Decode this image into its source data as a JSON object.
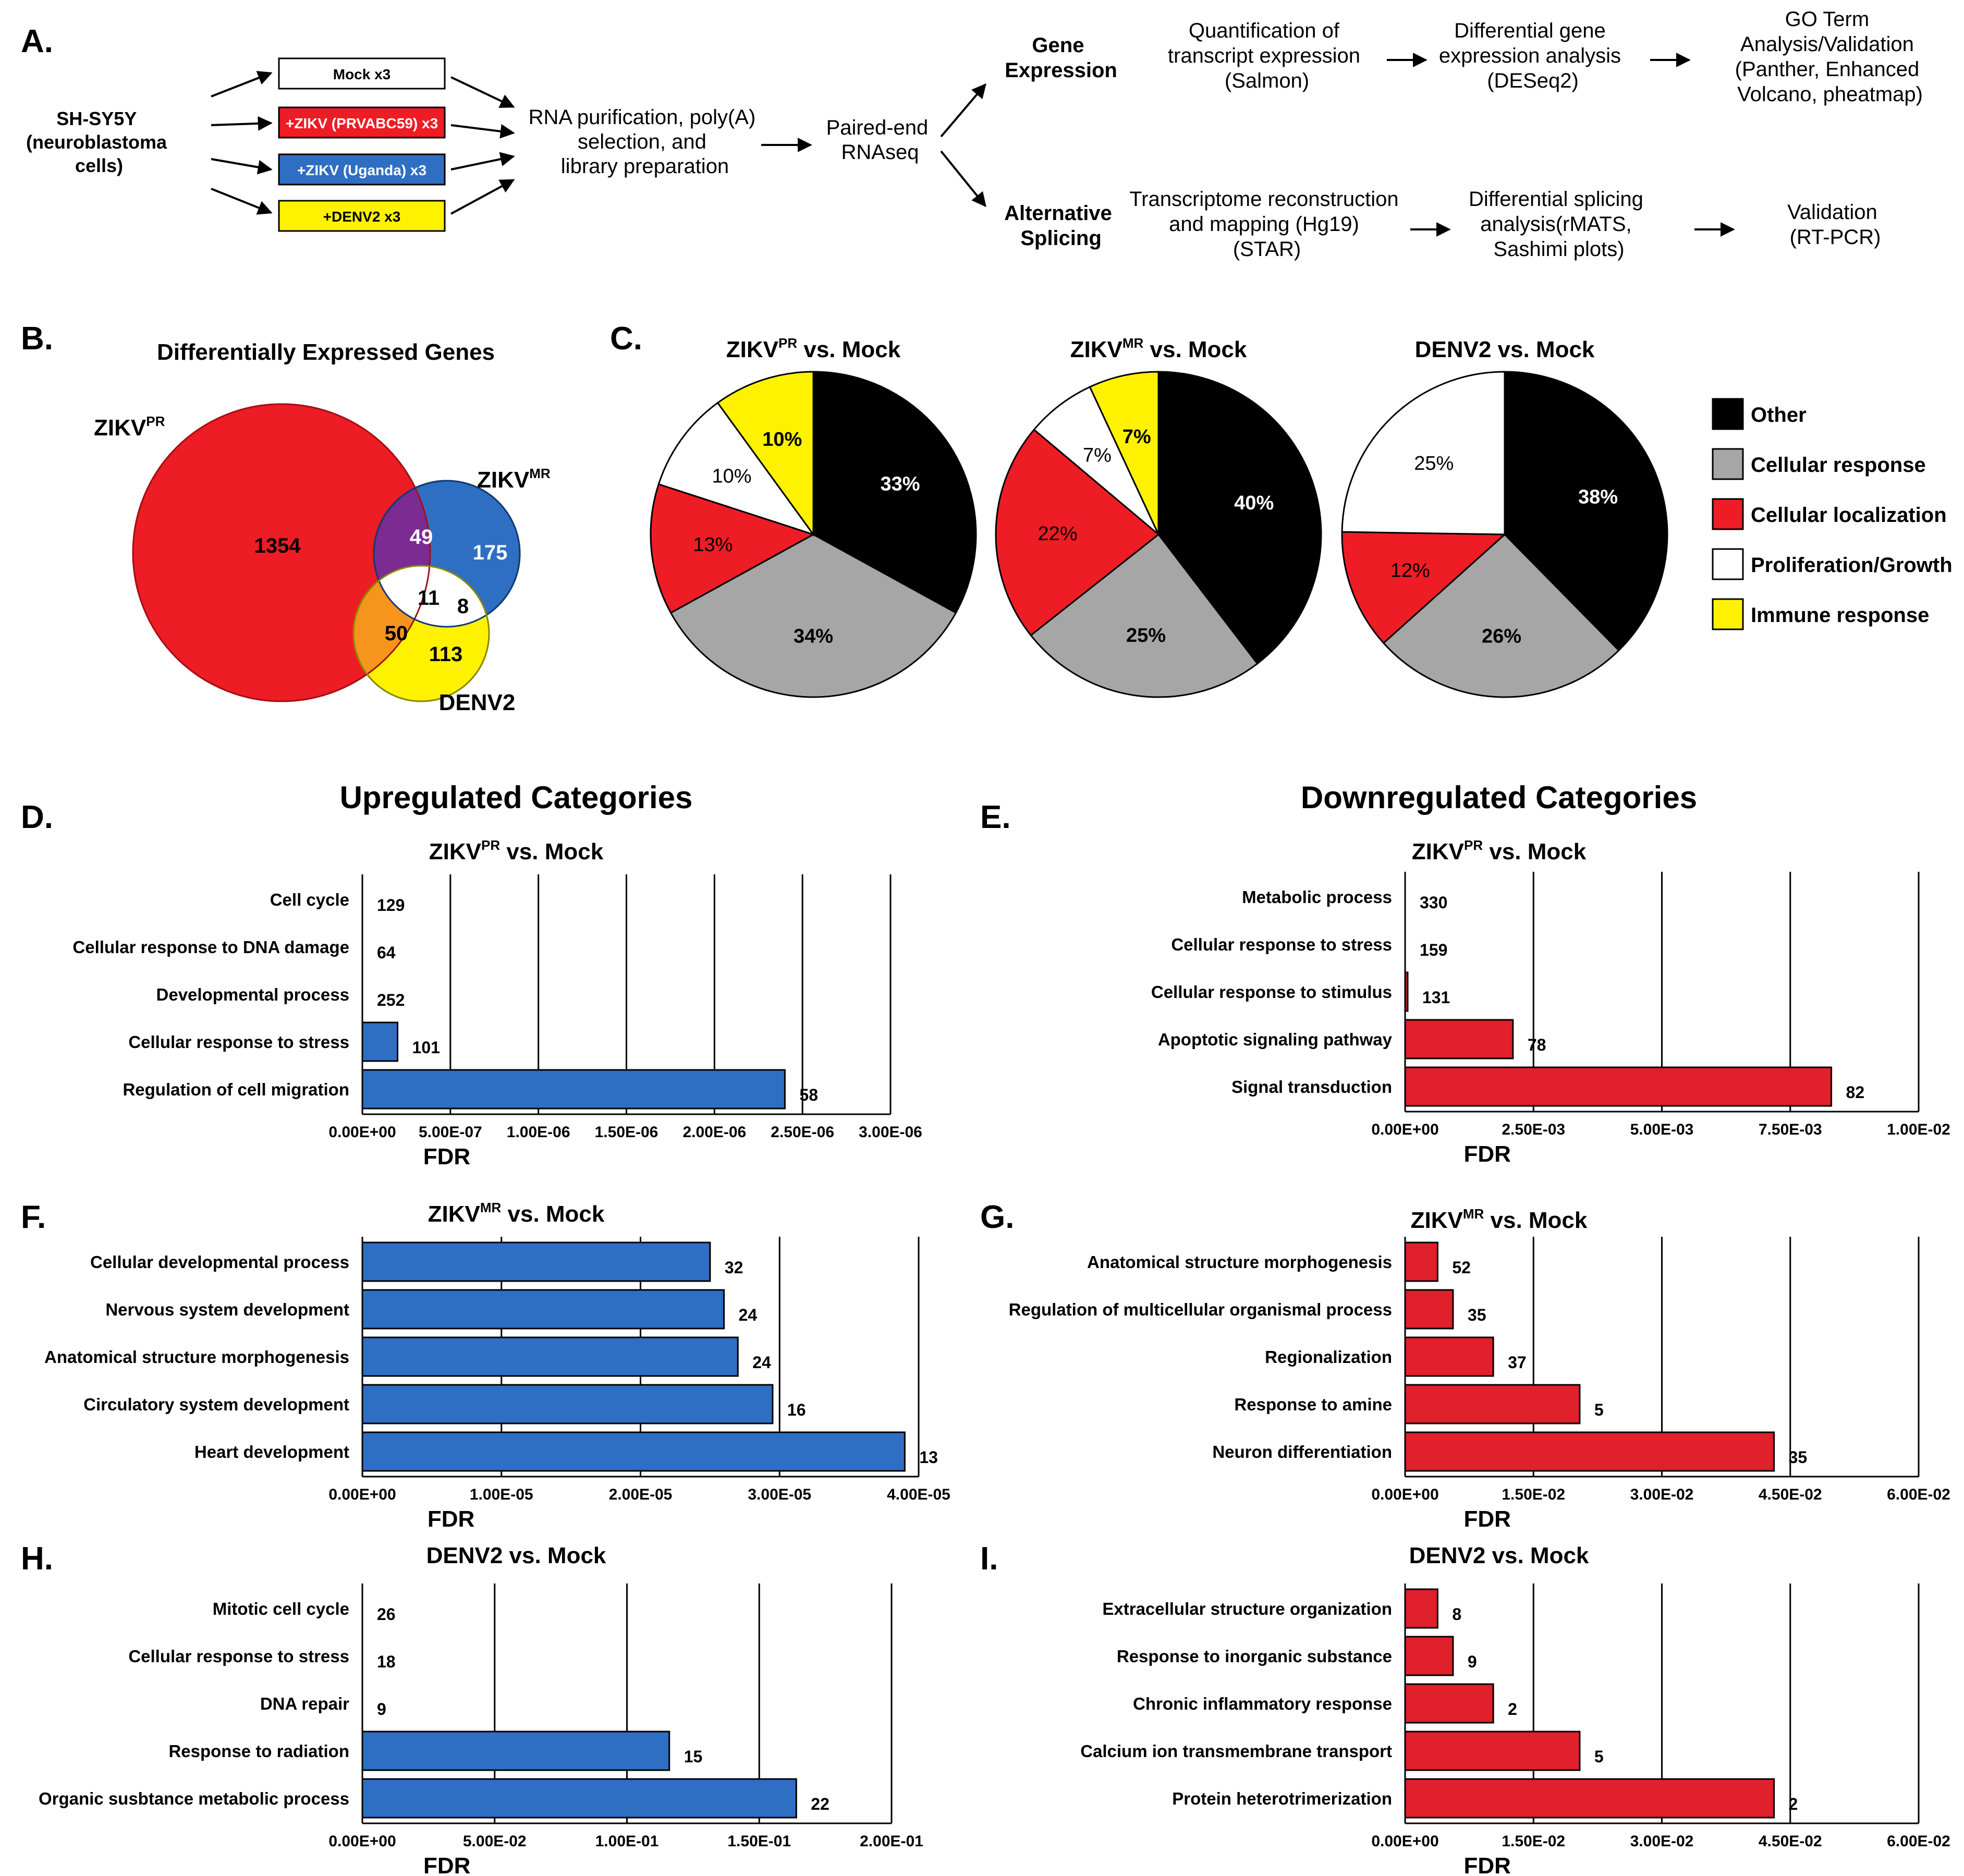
{
  "panel_a": {
    "label": "A.",
    "source": [
      "SH-SY5Y",
      "(neuroblastoma",
      "cells)"
    ],
    "conditions": [
      {
        "text": "Mock x3",
        "color": "#ffffff",
        "text_color": "#000000"
      },
      {
        "text": "+ZIKV (PRVABC59) x3",
        "color": "#ee1c24",
        "text_color": "#ffffff"
      },
      {
        "text": "+ZIKV (Uganda) x3",
        "color": "#2e6fc4",
        "text_color": "#ffffff"
      },
      {
        "text": "+DENV2 x3",
        "color": "#fff200",
        "text_color": "#000000"
      }
    ],
    "purification": [
      "RNA purification, poly(A)",
      "selection, and",
      "library preparation"
    ],
    "rnaseq": [
      "Paired-end",
      "RNAseq"
    ],
    "gene_expression": {
      "title": [
        "Gene",
        "Expression"
      ],
      "steps": [
        [
          "Quantification of",
          "transcript expression",
          "(Salmon)"
        ],
        [
          "Differential gene",
          "expression analysis",
          "(DESeq2)"
        ],
        [
          "GO Term",
          "Analysis/Validation",
          "(Panther, Enhanced",
          "Volcano, pheatmap)"
        ]
      ]
    },
    "alternative_splicing": {
      "title": [
        "Alternative",
        "Splicing"
      ],
      "steps": [
        [
          "Transcriptome reconstruction",
          "and mapping (Hg19)",
          "(STAR)"
        ],
        [
          "Differential splicing",
          "analysis(rMATS,",
          "Sashimi plots)"
        ],
        [
          "Validation",
          "(RT-PCR)"
        ]
      ]
    }
  },
  "panel_b": {
    "label": "B.",
    "title": "Differentially Expressed Genes",
    "sets": {
      "zikv_pr": "ZIKV",
      "zikv_pr_sup": "PR",
      "zikv_mr": "ZIKV",
      "zikv_mr_sup": "MR",
      "denv2": "DENV2"
    },
    "counts": {
      "pr_only": "1354",
      "pr_mr": "49",
      "mr_only": "175",
      "all_three": "11",
      "mr_denv": "8",
      "pr_denv": "50",
      "denv_only": "113"
    }
  },
  "panel_c": {
    "label": "C.",
    "legend": [
      {
        "name": "Other",
        "color": "#000000"
      },
      {
        "name": "Cellular response",
        "color": "#a6a6a6"
      },
      {
        "name": "Cellular localization",
        "color": "#ee1c24"
      },
      {
        "name": "Proliferation/Growth",
        "color": "#ffffff"
      },
      {
        "name": "Immune response",
        "color": "#fff200"
      }
    ]
  },
  "headings": {
    "up": "Upregulated Categories",
    "down": "Downregulated Categories"
  },
  "chart_data": [
    {
      "type": "pie",
      "title": "ZIKV",
      "title_sup": "PR",
      "title_rest": " vs. Mock",
      "slices": [
        {
          "category": "Other",
          "value": 33,
          "label": "33%"
        },
        {
          "category": "Cellular response",
          "value": 34,
          "label": "34%"
        },
        {
          "category": "Cellular localization",
          "value": 13,
          "label": "13%"
        },
        {
          "category": "Proliferation/Growth",
          "value": 10,
          "label": "10%"
        },
        {
          "category": "Immune response",
          "value": 10,
          "label": "10%"
        }
      ]
    },
    {
      "type": "pie",
      "title": "ZIKV",
      "title_sup": "MR",
      "title_rest": " vs. Mock",
      "slices": [
        {
          "category": "Other",
          "value": 40,
          "label": "40%"
        },
        {
          "category": "Cellular response",
          "value": 25,
          "label": "25%"
        },
        {
          "category": "Cellular localization",
          "value": 22,
          "label": "22%"
        },
        {
          "category": "Proliferation/Growth",
          "value": 7,
          "label": "7%"
        },
        {
          "category": "Immune response",
          "value": 7,
          "label": "7%"
        }
      ]
    },
    {
      "type": "pie",
      "title": "DENV2 vs. Mock",
      "title_sup": "",
      "title_rest": "",
      "slices": [
        {
          "category": "Other",
          "value": 38,
          "label": "38%"
        },
        {
          "category": "Cellular response",
          "value": 26,
          "label": "26%"
        },
        {
          "category": "Cellular localization",
          "value": 12,
          "label": "12%"
        },
        {
          "category": "Proliferation/Growth",
          "value": 25,
          "label": "25%"
        }
      ]
    },
    {
      "type": "bar",
      "orientation": "horizontal",
      "panel": "D.",
      "title": "ZIKV",
      "title_sup": "PR",
      "title_rest": " vs. Mock",
      "color": "#2e6fc4",
      "xlabel": "FDR",
      "xlim": [
        0,
        3e-06
      ],
      "ticks": [
        "0.00E+00",
        "5.00E-07",
        "1.00E-06",
        "1.50E-06",
        "2.00E-06",
        "2.50E-06",
        "3.00E-06"
      ],
      "categories": [
        "Cell cycle",
        "Cellular response to DNA damage",
        "Developmental process",
        "Cellular response to stress",
        "Regulation of cell migration"
      ],
      "values": [
        0,
        0,
        0,
        2e-07,
        2.4e-06
      ],
      "counts": [
        "129",
        "64",
        "252",
        "101",
        "58"
      ]
    },
    {
      "type": "bar",
      "orientation": "horizontal",
      "panel": "E.",
      "title": "ZIKV",
      "title_sup": "PR",
      "title_rest": " vs. Mock",
      "color": "#e0202a",
      "xlabel": "FDR",
      "xlim": [
        0,
        0.01
      ],
      "ticks": [
        "0.00E+00",
        "2.50E-03",
        "5.00E-03",
        "7.50E-03",
        "1.00E-02"
      ],
      "categories": [
        "Metabolic process",
        "Cellular response to stress",
        "Cellular response to stimulus",
        "Apoptotic signaling pathway",
        "Signal transduction"
      ],
      "values": [
        0,
        0,
        5e-05,
        0.0021,
        0.0083
      ],
      "counts": [
        "330",
        "159",
        "131",
        "78",
        "82"
      ]
    },
    {
      "type": "bar",
      "orientation": "horizontal",
      "panel": "F.",
      "title": "ZIKV",
      "title_sup": "MR",
      "title_rest": " vs. Mock",
      "color": "#2e6fc4",
      "xlabel": "FDR",
      "xlim": [
        0,
        4e-05
      ],
      "ticks": [
        "0.00E+00",
        "1.00E-05",
        "2.00E-05",
        "3.00E-05",
        "4.00E-05"
      ],
      "categories": [
        "Cellular developmental process",
        "Nervous system development",
        "Anatomical structure morphogenesis",
        "Circulatory system development",
        "Heart development"
      ],
      "values": [
        2.5e-05,
        2.6e-05,
        2.7e-05,
        2.95e-05,
        3.9e-05
      ],
      "counts": [
        "32",
        "24",
        "24",
        "16",
        "13"
      ]
    },
    {
      "type": "bar",
      "orientation": "horizontal",
      "panel": "G.",
      "title": "ZIKV",
      "title_sup": "MR",
      "title_rest": " vs. Mock",
      "color": "#e0202a",
      "xlabel": "FDR",
      "xlim": [
        0,
        0.06
      ],
      "ticks": [
        "0.00E+00",
        "1.50E-02",
        "3.00E-02",
        "4.50E-02",
        "6.00E-02"
      ],
      "categories": [
        "Anatomical structure morphogenesis",
        "Regulation of multicellular organismal process",
        "Regionalization",
        "Response to amine",
        "Neuron differentiation"
      ],
      "values": [
        0.0038,
        0.0056,
        0.0103,
        0.0204,
        0.0431
      ],
      "counts": [
        "52",
        "35",
        "37",
        "5",
        "35"
      ]
    },
    {
      "type": "bar",
      "orientation": "horizontal",
      "panel": "H.",
      "title": "DENV2 vs. Mock",
      "title_sup": "",
      "title_rest": "",
      "color": "#2e6fc4",
      "xlabel": "FDR",
      "xlim": [
        0,
        0.2
      ],
      "ticks": [
        "0.00E+00",
        "5.00E-02",
        "1.00E-01",
        "1.50E-01",
        "2.00E-01"
      ],
      "categories": [
        "Mitotic cell cycle",
        "Cellular response to stress",
        "DNA repair",
        "Response to radiation",
        "Organic susbtance metabolic process"
      ],
      "values": [
        0,
        0,
        0,
        0.116,
        0.164
      ],
      "counts": [
        "26",
        "18",
        "9",
        "15",
        "22"
      ]
    },
    {
      "type": "bar",
      "orientation": "horizontal",
      "panel": "I.",
      "title": "DENV2 vs. Mock",
      "title_sup": "",
      "title_rest": "",
      "color": "#e0202a",
      "xlabel": "FDR",
      "xlim": [
        0,
        0.06
      ],
      "ticks": [
        "0.00E+00",
        "1.50E-02",
        "3.00E-02",
        "4.50E-02",
        "6.00E-02"
      ],
      "categories": [
        "Extracellular structure organization",
        "Response to inorganic substance",
        "Chronic inflammatory response",
        "Calcium ion transmembrane transport",
        "Protein heterotrimerization"
      ],
      "values": [
        0.0038,
        0.0056,
        0.0103,
        0.0204,
        0.0431
      ],
      "counts": [
        "8",
        "9",
        "2",
        "5",
        "2"
      ]
    }
  ]
}
